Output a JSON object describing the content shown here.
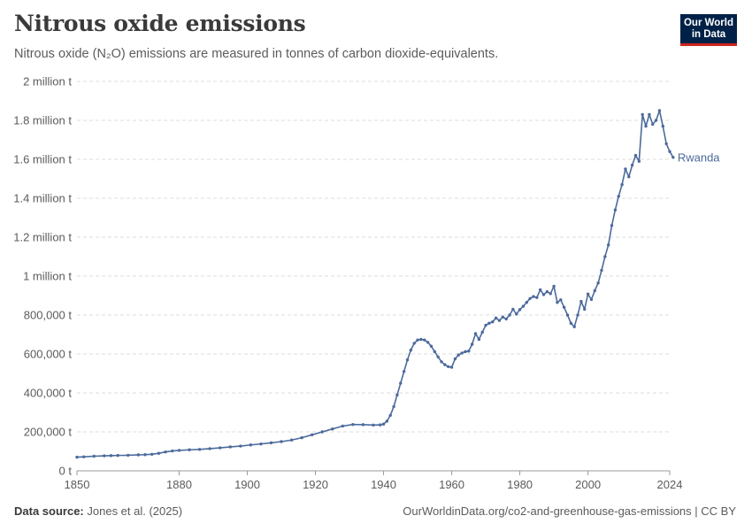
{
  "header": {
    "title": "Nitrous oxide emissions",
    "subtitle": "Nitrous oxide (N₂O) emissions are measured in tonnes of carbon dioxide-equivalents."
  },
  "logo": {
    "line1": "Our World",
    "line2": "in Data"
  },
  "footer": {
    "source_label": "Data source:",
    "source_text": "Jones et al. (2025)",
    "right_text": "OurWorldinData.org/co2-and-greenhouse-gas-emissions | CC BY"
  },
  "colors": {
    "series": "#4c6a9c",
    "grid": "#dddddd",
    "text": "#5b5b5b",
    "logo_bg": "#002147",
    "logo_accent": "#ce261e"
  },
  "chart_data": {
    "type": "line",
    "title": "Nitrous oxide emissions",
    "xlabel": "",
    "ylabel": "",
    "xlim": [
      1850,
      2024
    ],
    "ylim": [
      0,
      2000000
    ],
    "grid": "horizontal dashed",
    "yticks": [
      {
        "value": 0,
        "label": "0 t"
      },
      {
        "value": 200000,
        "label": "200,000 t"
      },
      {
        "value": 400000,
        "label": "400,000 t"
      },
      {
        "value": 600000,
        "label": "600,000 t"
      },
      {
        "value": 800000,
        "label": "800,000 t"
      },
      {
        "value": 1000000,
        "label": "1 million t"
      },
      {
        "value": 1200000,
        "label": "1.2 million t"
      },
      {
        "value": 1400000,
        "label": "1.4 million t"
      },
      {
        "value": 1600000,
        "label": "1.6 million t"
      },
      {
        "value": 1800000,
        "label": "1.8 million t"
      },
      {
        "value": 2000000,
        "label": "2 million t"
      }
    ],
    "xticks": [
      {
        "value": 1850,
        "label": "1850"
      },
      {
        "value": 1880,
        "label": "1880"
      },
      {
        "value": 1900,
        "label": "1900"
      },
      {
        "value": 1920,
        "label": "1920"
      },
      {
        "value": 1940,
        "label": "1940"
      },
      {
        "value": 1960,
        "label": "1960"
      },
      {
        "value": 1980,
        "label": "1980"
      },
      {
        "value": 2000,
        "label": "2000"
      },
      {
        "value": 2024,
        "label": "2024"
      }
    ],
    "series": [
      {
        "name": "Rwanda",
        "points": [
          [
            1850,
            70000
          ],
          [
            1852,
            72000
          ],
          [
            1855,
            75000
          ],
          [
            1858,
            77000
          ],
          [
            1860,
            78000
          ],
          [
            1862,
            79000
          ],
          [
            1865,
            80000
          ],
          [
            1868,
            82000
          ],
          [
            1870,
            83000
          ],
          [
            1872,
            85000
          ],
          [
            1874,
            90000
          ],
          [
            1876,
            97000
          ],
          [
            1878,
            102000
          ],
          [
            1880,
            105000
          ],
          [
            1883,
            108000
          ],
          [
            1886,
            110000
          ],
          [
            1889,
            114000
          ],
          [
            1892,
            118000
          ],
          [
            1895,
            123000
          ],
          [
            1898,
            127000
          ],
          [
            1901,
            133000
          ],
          [
            1904,
            138000
          ],
          [
            1907,
            144000
          ],
          [
            1910,
            150000
          ],
          [
            1913,
            158000
          ],
          [
            1916,
            170000
          ],
          [
            1919,
            185000
          ],
          [
            1922,
            200000
          ],
          [
            1925,
            215000
          ],
          [
            1928,
            230000
          ],
          [
            1931,
            238000
          ],
          [
            1934,
            237000
          ],
          [
            1937,
            235000
          ],
          [
            1939,
            236000
          ],
          [
            1940,
            240000
          ],
          [
            1941,
            255000
          ],
          [
            1942,
            285000
          ],
          [
            1943,
            330000
          ],
          [
            1944,
            390000
          ],
          [
            1945,
            450000
          ],
          [
            1946,
            510000
          ],
          [
            1947,
            570000
          ],
          [
            1948,
            620000
          ],
          [
            1949,
            655000
          ],
          [
            1950,
            672000
          ],
          [
            1951,
            675000
          ],
          [
            1952,
            672000
          ],
          [
            1953,
            660000
          ],
          [
            1954,
            640000
          ],
          [
            1955,
            612000
          ],
          [
            1956,
            585000
          ],
          [
            1957,
            560000
          ],
          [
            1958,
            545000
          ],
          [
            1959,
            535000
          ],
          [
            1960,
            532000
          ],
          [
            1961,
            575000
          ],
          [
            1962,
            595000
          ],
          [
            1963,
            605000
          ],
          [
            1964,
            612000
          ],
          [
            1965,
            615000
          ],
          [
            1966,
            650000
          ],
          [
            1967,
            705000
          ],
          [
            1968,
            675000
          ],
          [
            1969,
            712000
          ],
          [
            1970,
            748000
          ],
          [
            1971,
            758000
          ],
          [
            1972,
            765000
          ],
          [
            1973,
            785000
          ],
          [
            1974,
            772000
          ],
          [
            1975,
            790000
          ],
          [
            1976,
            780000
          ],
          [
            1977,
            800000
          ],
          [
            1978,
            830000
          ],
          [
            1979,
            805000
          ],
          [
            1980,
            828000
          ],
          [
            1981,
            845000
          ],
          [
            1982,
            865000
          ],
          [
            1983,
            885000
          ],
          [
            1984,
            895000
          ],
          [
            1985,
            890000
          ],
          [
            1986,
            930000
          ],
          [
            1987,
            905000
          ],
          [
            1988,
            920000
          ],
          [
            1989,
            910000
          ],
          [
            1990,
            948000
          ],
          [
            1991,
            865000
          ],
          [
            1992,
            878000
          ],
          [
            1993,
            840000
          ],
          [
            1994,
            800000
          ],
          [
            1995,
            758000
          ],
          [
            1996,
            740000
          ],
          [
            1997,
            800000
          ],
          [
            1998,
            870000
          ],
          [
            1999,
            830000
          ],
          [
            2000,
            908000
          ],
          [
            2001,
            880000
          ],
          [
            2002,
            925000
          ],
          [
            2003,
            965000
          ],
          [
            2004,
            1030000
          ],
          [
            2005,
            1100000
          ],
          [
            2006,
            1160000
          ],
          [
            2007,
            1260000
          ],
          [
            2008,
            1340000
          ],
          [
            2009,
            1410000
          ],
          [
            2010,
            1470000
          ],
          [
            2011,
            1550000
          ],
          [
            2012,
            1510000
          ],
          [
            2013,
            1570000
          ],
          [
            2014,
            1620000
          ],
          [
            2015,
            1590000
          ],
          [
            2016,
            1830000
          ],
          [
            2017,
            1770000
          ],
          [
            2018,
            1830000
          ],
          [
            2019,
            1780000
          ],
          [
            2020,
            1800000
          ],
          [
            2021,
            1850000
          ],
          [
            2022,
            1770000
          ],
          [
            2023,
            1680000
          ],
          [
            2024,
            1640000
          ],
          [
            2025,
            1610000
          ]
        ]
      }
    ]
  }
}
